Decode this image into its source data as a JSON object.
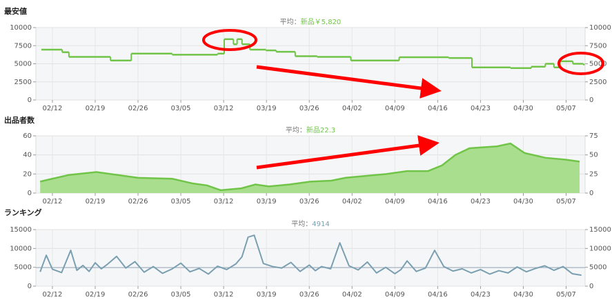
{
  "chart_data": [
    {
      "type": "line",
      "step": true,
      "title": "最安値",
      "average_label": "平均：",
      "average_text": "新品￥5,820",
      "color": "#70c447",
      "xlim": [
        -2.7,
        87.1
      ],
      "xticks": [
        {
          "value": 0,
          "label": "02/12"
        },
        {
          "value": 7,
          "label": "02/19"
        },
        {
          "value": 14,
          "label": "02/26"
        },
        {
          "value": 21,
          "label": "03/05"
        },
        {
          "value": 28,
          "label": "03/12"
        },
        {
          "value": 35,
          "label": "03/19"
        },
        {
          "value": 42,
          "label": "03/26"
        },
        {
          "value": 49,
          "label": "04/02"
        },
        {
          "value": 56,
          "label": "04/09"
        },
        {
          "value": 63,
          "label": "04/16"
        },
        {
          "value": 70,
          "label": "04/23"
        },
        {
          "value": 77,
          "label": "04/30"
        },
        {
          "value": 84,
          "label": "05/07"
        }
      ],
      "ylim": [
        0,
        10000
      ],
      "yticks": [
        0,
        2500,
        5000,
        7500,
        10000
      ],
      "y2lim": [
        0,
        10000
      ],
      "y2ticks": [
        0,
        2500,
        5000,
        7500,
        10000
      ],
      "x": [
        -1.8,
        1.6,
        2.7,
        9.5,
        12.9,
        19.6,
        27,
        28.1,
        29.6,
        30.2,
        31,
        32.3,
        34.9,
        36.6,
        39.7,
        43.3,
        48.8,
        56.7,
        64.8,
        68.6,
        74.9,
        78.3,
        80.6,
        82,
        83,
        85.1,
        86.8
      ],
      "values": [
        6950,
        6600,
        5950,
        5450,
        6400,
        6250,
        6400,
        8400,
        7700,
        8400,
        7700,
        6950,
        6850,
        6650,
        6050,
        5950,
        5450,
        5900,
        5800,
        4500,
        4400,
        4600,
        5000,
        4500,
        5350,
        5000,
        4900
      ]
    },
    {
      "type": "area",
      "title": "出品者数",
      "average_label": "平均：",
      "average_text": "新品22.3",
      "color": "#70c447",
      "fill": "#a9de8f",
      "xlim": [
        -2.7,
        87.1
      ],
      "xticks": [
        {
          "value": 0,
          "label": "02/12"
        },
        {
          "value": 7,
          "label": "02/19"
        },
        {
          "value": 14,
          "label": "02/26"
        },
        {
          "value": 21,
          "label": "03/05"
        },
        {
          "value": 28,
          "label": "03/12"
        },
        {
          "value": 35,
          "label": "03/19"
        },
        {
          "value": 42,
          "label": "03/26"
        },
        {
          "value": 49,
          "label": "04/02"
        },
        {
          "value": 56,
          "label": "04/09"
        },
        {
          "value": 63,
          "label": "04/16"
        },
        {
          "value": 70,
          "label": "04/23"
        },
        {
          "value": 77,
          "label": "04/30"
        },
        {
          "value": 84,
          "label": "05/07"
        }
      ],
      "ylim": [
        0,
        60
      ],
      "yticks": [
        0,
        20,
        40,
        60
      ],
      "y2lim": [
        0,
        75
      ],
      "y2ticks": [
        0,
        25,
        50,
        75
      ],
      "x": [
        -2.0,
        -0.7,
        2.7,
        7.2,
        8.4,
        14.0,
        19.6,
        23.0,
        25.3,
        27.5,
        30.9,
        33.2,
        35.4,
        38.8,
        42.2,
        45.6,
        47.9,
        51.2,
        54.6,
        58.0,
        61.4,
        63.7,
        65.9,
        68.2,
        70.4,
        72.7,
        74.9,
        77.2,
        80.6,
        84.0,
        86.2
      ],
      "values": [
        12,
        14,
        19,
        22,
        21,
        16,
        15,
        10,
        8,
        3,
        5,
        9,
        7,
        9,
        12,
        13,
        16,
        18,
        20,
        23,
        23,
        29,
        40,
        47,
        48,
        49,
        52,
        42,
        37,
        35,
        33
      ]
    },
    {
      "type": "line",
      "title": "ランキング",
      "average_label": "平均：",
      "average": 4914,
      "color": "#7a9fb1",
      "xlim": [
        -2.7,
        87.1
      ],
      "xticks": [
        {
          "value": 0,
          "label": "02/12"
        },
        {
          "value": 7,
          "label": "02/19"
        },
        {
          "value": 14,
          "label": "02/26"
        },
        {
          "value": 21,
          "label": "03/05"
        },
        {
          "value": 28,
          "label": "03/12"
        },
        {
          "value": 35,
          "label": "03/19"
        },
        {
          "value": 42,
          "label": "03/26"
        },
        {
          "value": 49,
          "label": "04/02"
        },
        {
          "value": 56,
          "label": "04/09"
        },
        {
          "value": 63,
          "label": "04/16"
        },
        {
          "value": 70,
          "label": "04/23"
        },
        {
          "value": 77,
          "label": "04/30"
        },
        {
          "value": 84,
          "label": "05/07"
        }
      ],
      "ylim": [
        0,
        15000
      ],
      "yticks": [
        0,
        5000,
        10000,
        15000
      ],
      "y2lim": [
        0,
        15000
      ],
      "y2ticks": [
        0,
        5000,
        10000,
        15000
      ],
      "x": [
        -2,
        -1,
        0,
        1.5,
        3,
        4,
        5,
        6,
        7,
        8,
        9,
        10.5,
        12,
        13.5,
        15,
        16.5,
        18,
        19.5,
        21,
        22.5,
        24,
        25.5,
        27,
        28.5,
        30,
        31,
        32,
        33,
        34.5,
        36,
        37.5,
        39,
        40.5,
        42,
        43,
        44,
        45.5,
        47,
        48.5,
        50,
        51.5,
        53,
        54.5,
        56,
        57,
        58,
        59.5,
        61,
        62.5,
        64,
        65.5,
        67,
        68.5,
        70,
        71.5,
        73,
        74.5,
        76,
        77.5,
        79,
        80.5,
        82,
        83.5,
        85,
        86.5
      ],
      "values": [
        3800,
        8200,
        4500,
        3600,
        9500,
        4200,
        5500,
        3900,
        6200,
        4600,
        5800,
        7900,
        4800,
        6500,
        3700,
        5200,
        3400,
        4500,
        6100,
        3800,
        4700,
        3200,
        5300,
        4400,
        5900,
        7800,
        13000,
        13500,
        6000,
        5200,
        4800,
        6300,
        3900,
        5600,
        4100,
        5200,
        4600,
        11500,
        5400,
        4300,
        6400,
        3500,
        5000,
        3300,
        4400,
        6700,
        3900,
        4800,
        9500,
        5200,
        4000,
        4600,
        3500,
        4400,
        3200,
        4100,
        3500,
        5100,
        3800,
        4700,
        5400,
        4200,
        5200,
        3300,
        2900
      ]
    }
  ]
}
